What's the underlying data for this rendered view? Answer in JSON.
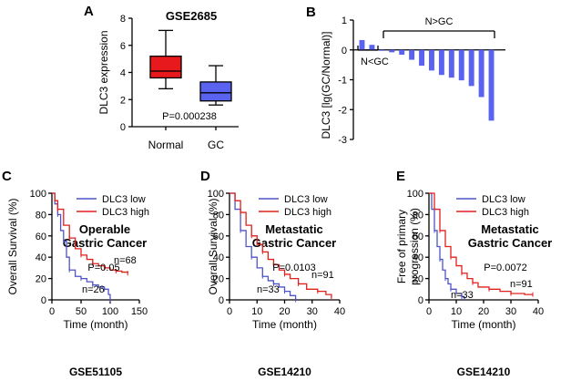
{
  "chart_data": [
    {
      "panel": "A",
      "type": "box",
      "title": "GSE2685",
      "ylabel": "DLC3 expression",
      "ylim": [
        0,
        8
      ],
      "yticks": [
        "0",
        "2",
        "4",
        "6",
        "8"
      ],
      "categories": [
        "Normal",
        "GC"
      ],
      "boxes": [
        {
          "name": "Normal",
          "min": 2.8,
          "q1": 3.6,
          "median": 4.1,
          "q3": 5.2,
          "max": 7.1,
          "color": "#e8191d"
        },
        {
          "name": "GC",
          "min": 1.6,
          "q1": 1.9,
          "median": 2.5,
          "q3": 3.3,
          "max": 4.5,
          "color": "#5a62f0"
        }
      ],
      "annotation": "P=0.000238"
    },
    {
      "panel": "B",
      "type": "bar",
      "ylabel": "DLC3 [lg(GC/Normal)]",
      "ylim": [
        -3,
        1
      ],
      "yticks": [
        "-3",
        "-2",
        "-1",
        "0",
        "1"
      ],
      "bar_color": "#5a62f0",
      "values": [
        0.33,
        0.17,
        -0.03,
        -0.08,
        -0.16,
        -0.33,
        -0.53,
        -0.69,
        -0.84,
        -0.93,
        -1.02,
        -1.21,
        -1.58,
        -2.37
      ],
      "annotations": {
        "left": "N<GC",
        "right": "N>GC"
      }
    },
    {
      "panel": "C",
      "type": "line",
      "title": "Operable Gastric Cancer",
      "title_lines": [
        "Operable",
        "Gastric Cancer"
      ],
      "xlabel": "Time (month)",
      "ylabel": "Overall Survival (%)",
      "xlim": [
        0,
        150
      ],
      "ylim": [
        0,
        100
      ],
      "xticks": [
        "0",
        "50",
        "100",
        "150"
      ],
      "yticks": [
        "0",
        "20",
        "40",
        "60",
        "80",
        "100"
      ],
      "series": [
        {
          "name": "DLC3 low",
          "color": "#4f55c8",
          "x": [
            0,
            5,
            10,
            15,
            20,
            25,
            30,
            40,
            50,
            60,
            70,
            80,
            90,
            97,
            100
          ],
          "y": [
            100,
            90,
            80,
            65,
            55,
            40,
            28,
            22,
            20,
            17,
            14,
            12,
            10,
            5,
            0
          ]
        },
        {
          "name": "DLC3 high",
          "color": "#e0211d",
          "x": [
            0,
            5,
            10,
            20,
            30,
            40,
            50,
            60,
            70,
            80,
            90,
            100,
            110,
            120,
            130
          ],
          "y": [
            100,
            93,
            85,
            70,
            58,
            48,
            42,
            38,
            34,
            32,
            30,
            28,
            27,
            26,
            25
          ]
        }
      ],
      "annotations": {
        "p": "P=0.05",
        "n_high": "n=68",
        "n_low": "n=26"
      },
      "dataset": "GSE51105"
    },
    {
      "panel": "D",
      "type": "line",
      "title": "Metastatic Gastric Cancer",
      "title_lines": [
        "Metastatic",
        "Gastric Cancer"
      ],
      "xlabel": "Time (month)",
      "ylabel": "Overall Survival (%)",
      "xlim": [
        0,
        40
      ],
      "ylim": [
        0,
        100
      ],
      "xticks": [
        "0",
        "10",
        "20",
        "30",
        "40"
      ],
      "yticks": [
        "0",
        "20",
        "40",
        "60",
        "80",
        "100"
      ],
      "series": [
        {
          "name": "DLC3 low",
          "color": "#4f55c8",
          "x": [
            0,
            2,
            4,
            6,
            8,
            10,
            12,
            14,
            16,
            18,
            20,
            22,
            24
          ],
          "y": [
            100,
            85,
            65,
            50,
            40,
            30,
            22,
            18,
            15,
            12,
            8,
            4,
            0
          ]
        },
        {
          "name": "DLC3 high",
          "color": "#e0211d",
          "x": [
            0,
            2,
            4,
            6,
            8,
            10,
            12,
            14,
            16,
            18,
            20,
            22,
            25,
            28,
            32,
            35,
            37
          ],
          "y": [
            100,
            93,
            82,
            70,
            60,
            52,
            45,
            38,
            33,
            28,
            24,
            20,
            15,
            10,
            8,
            5,
            2
          ]
        }
      ],
      "annotations": {
        "p": "P=0.0103",
        "n_high": "n=91",
        "n_low": "n=33"
      },
      "dataset": "GSE14210"
    },
    {
      "panel": "E",
      "type": "line",
      "title": "Metastatic Gastric Cancer",
      "title_lines": [
        "Metastatic",
        "Gastric Cancer"
      ],
      "xlabel": "Time (month)",
      "ylabel": "Free of primary progression (%)",
      "ylabel_lines": [
        "Free of primary",
        "progression (%)"
      ],
      "xlim": [
        0,
        40
      ],
      "ylim": [
        0,
        100
      ],
      "xticks": [
        "0",
        "10",
        "20",
        "30",
        "40"
      ],
      "yticks": [
        "0",
        "20",
        "40",
        "60",
        "80",
        "100"
      ],
      "series": [
        {
          "name": "DLC3 low",
          "color": "#4f55c8",
          "x": [
            0,
            1,
            2,
            3,
            4,
            5,
            6,
            7,
            8,
            10,
            12,
            13
          ],
          "y": [
            100,
            85,
            65,
            50,
            38,
            28,
            20,
            15,
            10,
            6,
            3,
            0
          ]
        },
        {
          "name": "DLC3 high",
          "color": "#e0211d",
          "x": [
            0,
            2,
            4,
            6,
            8,
            10,
            12,
            14,
            16,
            18,
            22,
            26,
            30,
            35,
            38
          ],
          "y": [
            100,
            85,
            65,
            50,
            40,
            32,
            25,
            20,
            16,
            12,
            10,
            8,
            6,
            5,
            5
          ]
        }
      ],
      "annotations": {
        "p": "P=0.0072",
        "n_high": "n=91",
        "n_low": "n=33"
      },
      "dataset": "GSE14210"
    }
  ]
}
